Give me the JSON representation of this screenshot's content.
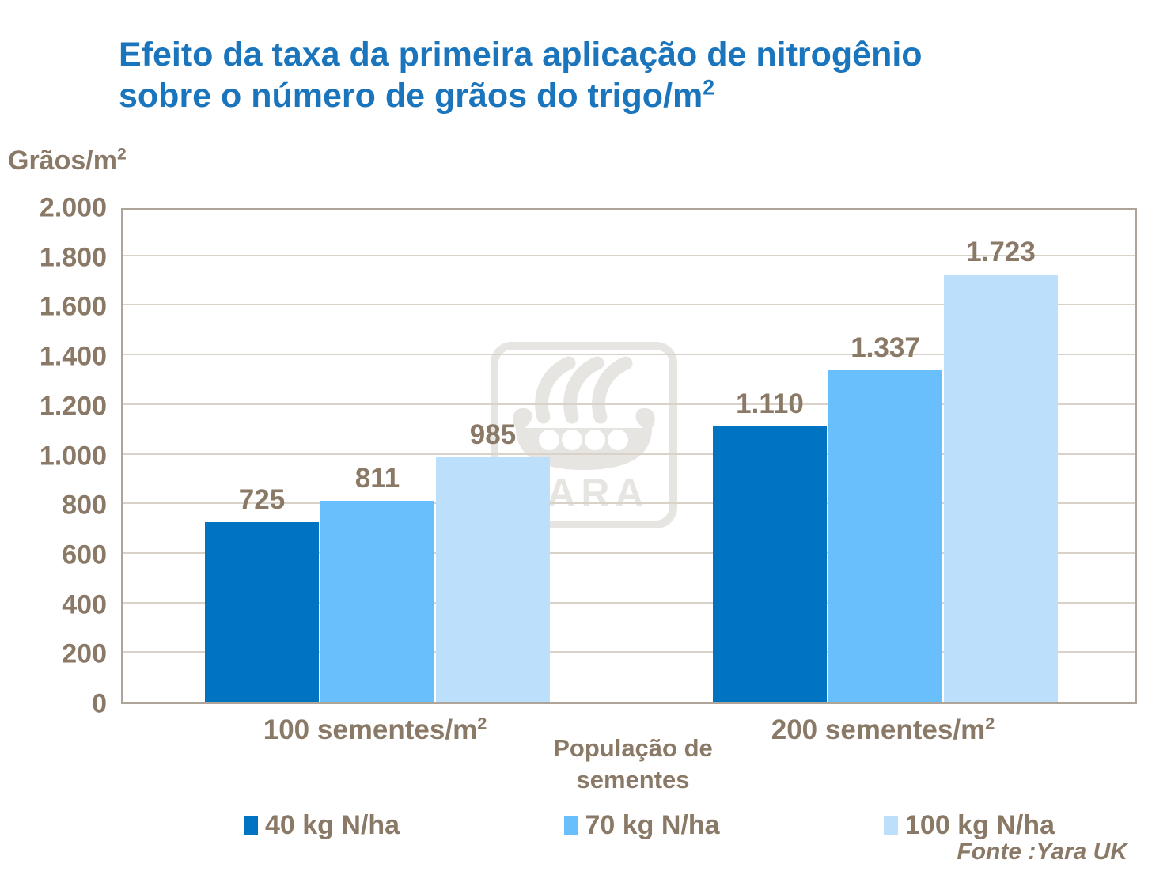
{
  "title": {
    "line1": "Efeito da taxa da primeira aplicação de nitrogênio",
    "line2_main": "sobre o número de grãos do trigo/m",
    "line2_sup": "2"
  },
  "y_axis_label": {
    "main": "Grãos/m",
    "sup": "2"
  },
  "x_axis_title": "População de sementes",
  "source": "Fonte :Yara UK",
  "watermark_text": "YARA",
  "colors": {
    "title_blue": "#1B75BC",
    "text_brown": "#8A7966",
    "plot_border": "#AFA498",
    "gridline": "#D8D2C9",
    "watermark_gray": "#E7E5E2"
  },
  "chart_data": {
    "type": "bar",
    "title": "Efeito da taxa da primeira aplicação de nitrogênio sobre o número de grãos do trigo/m2",
    "xlabel": "População de sementes",
    "ylabel": "Grãos/m2",
    "categories": [
      {
        "main": "100 sementes/m",
        "sup": "2"
      },
      {
        "main": "200 sementes/m",
        "sup": "2"
      }
    ],
    "series": [
      {
        "name": "40 kg N/ha",
        "color": "#0073C1",
        "values": [
          725,
          1110
        ],
        "labels": [
          "725",
          "1.110"
        ]
      },
      {
        "name": "70 kg N/ha",
        "color": "#68BFFB",
        "values": [
          811,
          1337
        ],
        "labels": [
          "811",
          "1.337"
        ]
      },
      {
        "name": "100 kg N/ha",
        "color": "#BCE0FB",
        "values": [
          985,
          1723
        ],
        "labels": [
          "985",
          "1.723"
        ]
      }
    ],
    "ylim": [
      0,
      2000
    ],
    "ytick_step": 200,
    "yticks": [
      "0",
      "200",
      "400",
      "600",
      "800",
      "1.000",
      "1.200",
      "1.400",
      "1.600",
      "1.800",
      "2.000"
    ],
    "grid": true,
    "legend_position": "bottom"
  }
}
